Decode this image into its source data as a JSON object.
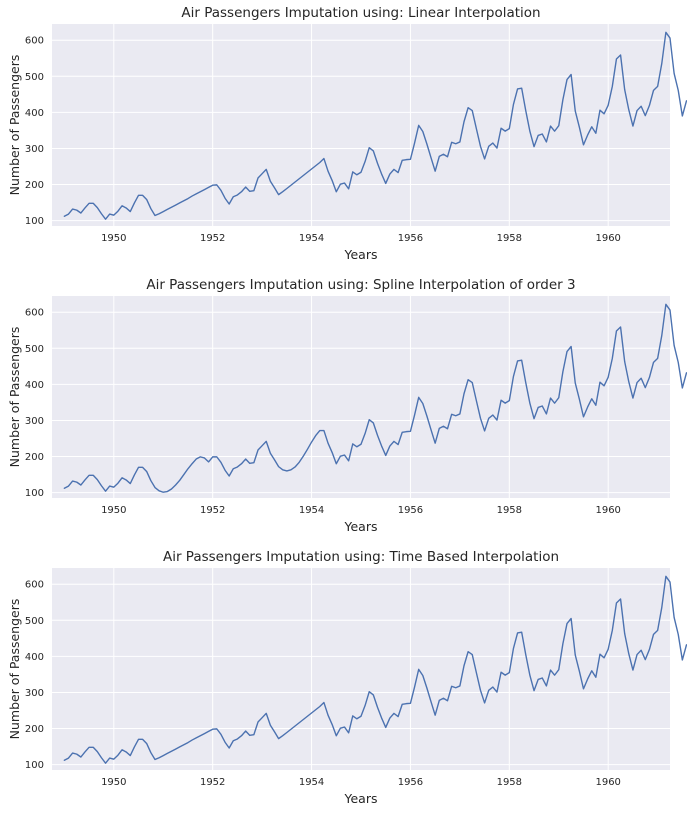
{
  "chart_data": [
    {
      "type": "line",
      "title": "Air Passengers Imputation using: Linear Interpolation",
      "xlabel": "Years",
      "ylabel": "Number of Passengers",
      "xticks": [
        1950,
        1952,
        1954,
        1956,
        1958,
        1960
      ],
      "yticks": [
        100,
        200,
        300,
        400,
        500,
        600
      ],
      "xlim": [
        1948.75,
        1961.25
      ],
      "ylim": [
        85,
        645
      ],
      "grid": true,
      "series": [
        {
          "name": "Passengers",
          "color": "#4c72b0",
          "x_start": 1949.0,
          "x_step": 0.083333,
          "values": [
            112,
            118,
            132,
            129,
            121,
            135,
            148,
            148,
            136,
            119,
            104,
            118,
            115,
            126,
            141,
            135,
            125,
            149,
            170,
            170,
            158,
            133,
            114,
            119,
            125,
            131,
            137,
            143,
            149,
            155,
            161,
            168,
            174,
            180,
            186,
            192,
            198,
            199,
            184,
            162,
            146,
            166,
            171,
            180,
            193,
            181,
            183,
            218,
            230,
            242,
            209,
            191,
            172,
            180,
            189,
            198,
            207,
            216,
            225,
            234,
            243,
            252,
            261,
            272,
            237,
            211,
            180,
            201,
            204,
            188,
            235,
            227,
            234,
            264,
            302,
            293,
            259,
            229,
            203,
            229,
            242,
            233,
            267,
            269,
            270,
            315,
            364,
            347,
            312,
            274,
            237,
            278,
            284,
            277,
            317,
            313,
            318,
            374,
            413,
            405,
            355,
            306,
            271,
            306,
            315,
            301,
            356,
            348,
            355,
            422,
            465,
            467,
            404,
            347,
            305,
            336,
            340,
            318,
            362,
            348,
            363,
            435,
            491,
            505,
            404,
            359,
            310,
            337,
            360,
            342,
            406,
            396,
            420,
            472,
            548,
            559,
            463,
            407,
            362,
            405,
            417,
            391,
            419,
            461,
            472,
            535,
            622,
            606,
            508,
            461,
            390,
            432
          ]
        }
      ]
    },
    {
      "type": "line",
      "title": "Air Passengers Imputation using: Spline Interpolation of order 3",
      "xlabel": "Years",
      "ylabel": "Number of Passengers",
      "xticks": [
        1950,
        1952,
        1954,
        1956,
        1958,
        1960
      ],
      "yticks": [
        100,
        200,
        300,
        400,
        500,
        600
      ],
      "xlim": [
        1948.75,
        1961.25
      ],
      "ylim": [
        85,
        645
      ],
      "grid": true,
      "series": [
        {
          "name": "Passengers",
          "color": "#4c72b0",
          "x_start": 1949.0,
          "x_step": 0.083333,
          "values": [
            112,
            118,
            132,
            129,
            121,
            135,
            148,
            148,
            136,
            119,
            104,
            118,
            115,
            126,
            141,
            135,
            125,
            149,
            170,
            170,
            158,
            133,
            114,
            105,
            101,
            103,
            110,
            121,
            134,
            150,
            166,
            180,
            193,
            199,
            196,
            185,
            199,
            199,
            184,
            162,
            146,
            166,
            171,
            180,
            193,
            181,
            183,
            218,
            230,
            242,
            209,
            191,
            172,
            163,
            160,
            163,
            171,
            184,
            201,
            220,
            240,
            258,
            272,
            272,
            237,
            211,
            180,
            201,
            204,
            188,
            235,
            227,
            234,
            264,
            302,
            293,
            259,
            229,
            203,
            229,
            242,
            233,
            267,
            269,
            270,
            315,
            364,
            347,
            312,
            274,
            237,
            278,
            284,
            277,
            317,
            313,
            318,
            374,
            413,
            405,
            355,
            306,
            271,
            306,
            315,
            301,
            356,
            348,
            355,
            422,
            465,
            467,
            404,
            347,
            305,
            336,
            340,
            318,
            362,
            348,
            363,
            435,
            491,
            505,
            404,
            359,
            310,
            337,
            360,
            342,
            406,
            396,
            420,
            472,
            548,
            559,
            463,
            407,
            362,
            405,
            417,
            391,
            419,
            461,
            472,
            535,
            622,
            606,
            508,
            461,
            390,
            432
          ]
        }
      ]
    },
    {
      "type": "line",
      "title": "Air Passengers Imputation using: Time Based Interpolation",
      "xlabel": "Years",
      "ylabel": "Number of Passengers",
      "xticks": [
        1950,
        1952,
        1954,
        1956,
        1958,
        1960
      ],
      "yticks": [
        100,
        200,
        300,
        400,
        500,
        600
      ],
      "xlim": [
        1948.75,
        1961.25
      ],
      "ylim": [
        85,
        645
      ],
      "grid": true,
      "series": [
        {
          "name": "Passengers",
          "color": "#4c72b0",
          "x_start": 1949.0,
          "x_step": 0.083333,
          "values": [
            112,
            118,
            132,
            129,
            121,
            135,
            148,
            148,
            136,
            119,
            104,
            118,
            115,
            126,
            141,
            135,
            125,
            149,
            170,
            170,
            158,
            133,
            114,
            119,
            125,
            131,
            137,
            143,
            149,
            155,
            161,
            168,
            174,
            180,
            186,
            192,
            198,
            199,
            184,
            162,
            146,
            166,
            171,
            180,
            193,
            181,
            183,
            218,
            230,
            242,
            209,
            191,
            172,
            180,
            189,
            198,
            207,
            216,
            225,
            234,
            243,
            252,
            261,
            272,
            237,
            211,
            180,
            201,
            204,
            188,
            235,
            227,
            234,
            264,
            302,
            293,
            259,
            229,
            203,
            229,
            242,
            233,
            267,
            269,
            270,
            315,
            364,
            347,
            312,
            274,
            237,
            278,
            284,
            277,
            317,
            313,
            318,
            374,
            413,
            405,
            355,
            306,
            271,
            306,
            315,
            301,
            356,
            348,
            355,
            422,
            465,
            467,
            404,
            347,
            305,
            336,
            340,
            318,
            362,
            348,
            363,
            435,
            491,
            505,
            404,
            359,
            310,
            337,
            360,
            342,
            406,
            396,
            420,
            472,
            548,
            559,
            463,
            407,
            362,
            405,
            417,
            391,
            419,
            461,
            472,
            535,
            622,
            606,
            508,
            461,
            390,
            432
          ]
        }
      ]
    }
  ]
}
